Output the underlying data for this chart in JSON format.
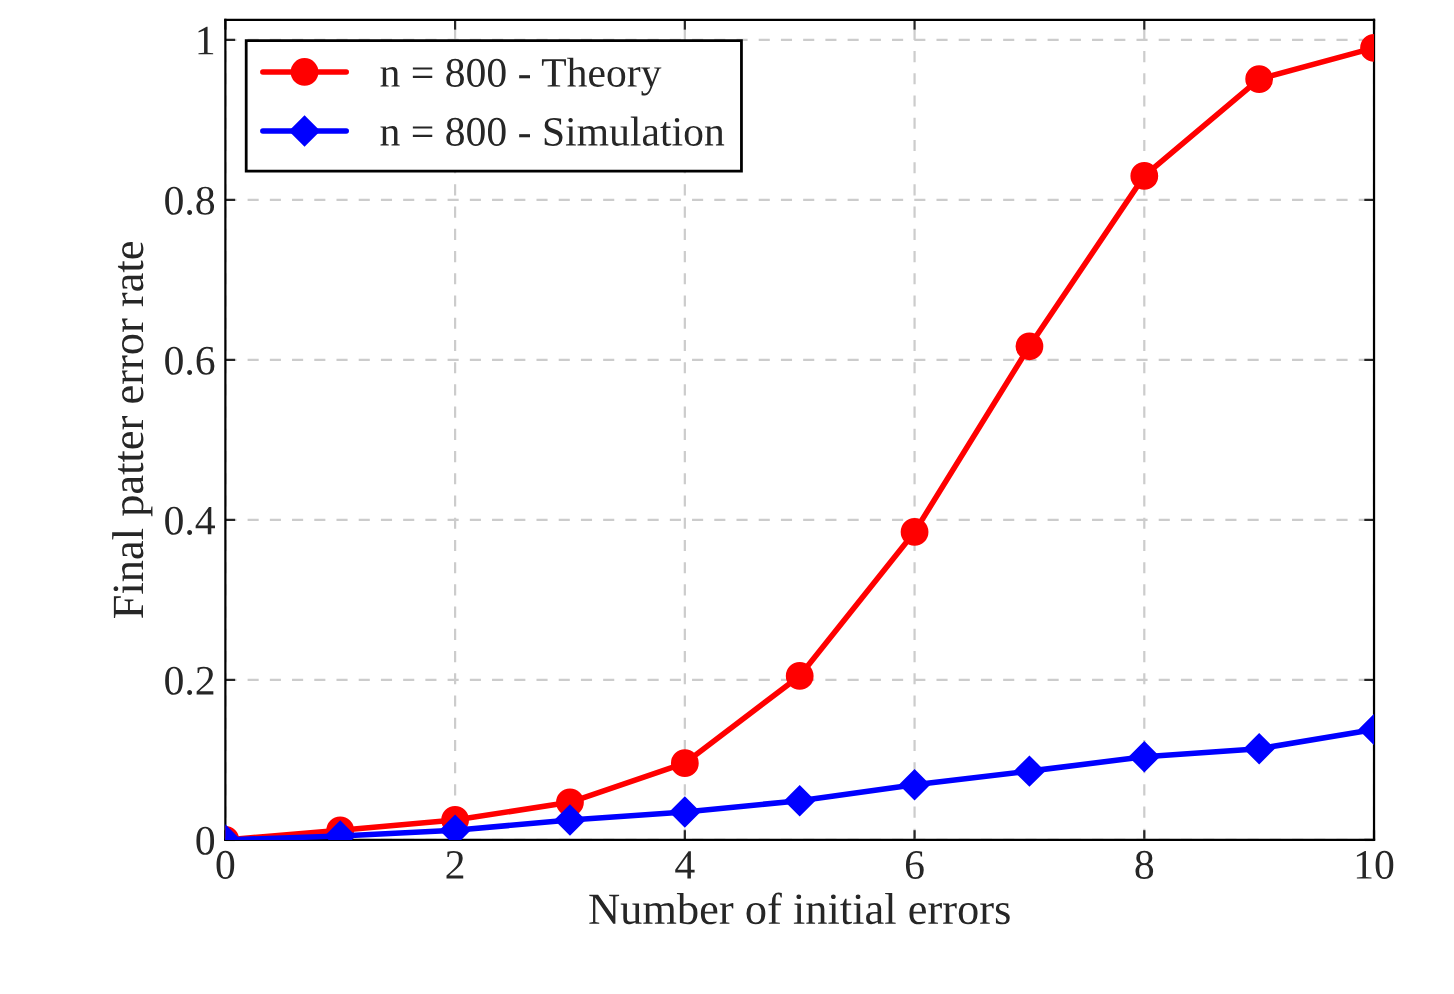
{
  "chart_data": {
    "type": "line",
    "xlabel": "Number of initial errors",
    "ylabel": "Final patter error rate",
    "x": [
      0,
      1,
      2,
      3,
      4,
      5,
      6,
      7,
      8,
      9,
      10
    ],
    "series": [
      {
        "name": "n = 800 - Theory",
        "color": "#ff0000",
        "marker": "circle",
        "values": [
          0,
          0.012,
          0.025,
          0.047,
          0.096,
          0.205,
          0.385,
          0.617,
          0.83,
          0.951,
          0.99
        ]
      },
      {
        "name": "n = 800 - Simulation",
        "color": "#0000ff",
        "marker": "diamond",
        "values": [
          0,
          0.005,
          0.012,
          0.025,
          0.035,
          0.049,
          0.069,
          0.086,
          0.104,
          0.114,
          0.138
        ]
      }
    ],
    "xlim": [
      0,
      10
    ],
    "ylim": [
      0,
      1.025
    ],
    "xticks": [
      0,
      2,
      4,
      6,
      8,
      10
    ],
    "yticks": [
      0,
      0.2,
      0.4,
      0.6,
      0.8,
      1
    ],
    "grid": true,
    "legend": "top left",
    "line_style": "solid"
  }
}
